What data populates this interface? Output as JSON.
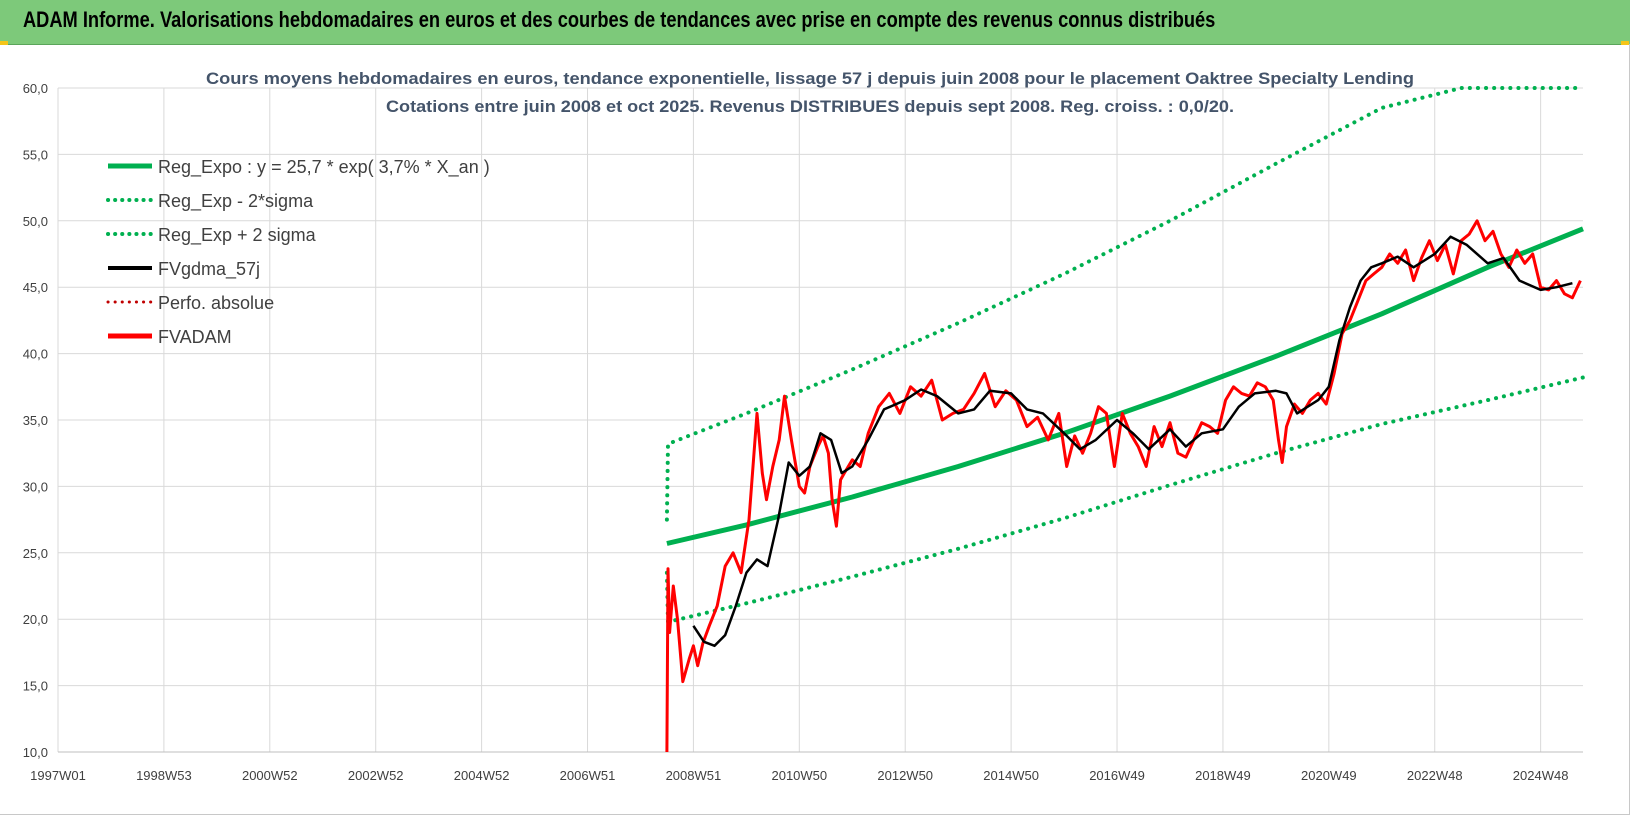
{
  "banner": {
    "title": "ADAM Informe. Valorisations hebdomadaires en euros et des courbes de tendances avec prise en compte des revenus connus distribués"
  },
  "colors": {
    "banner_bg": "#7dc97a",
    "reg_expo": "#00b050",
    "fvgdma": "#000000",
    "fvadam": "#ff0000",
    "perfo": "#c00000",
    "grid": "#d9d9d9"
  },
  "chart_data": {
    "type": "line",
    "title_lines": [
      "Cours moyens hebdomadaires en euros, tendance exponentielle, lissage 57 j depuis juin 2008 pour le placement Oaktree Specialty Lending",
      "Cotations entre juin 2008 et oct 2025. Revenus DISTRIBUES depuis sept 2008. Reg. croiss. : 0,0/20."
    ],
    "ylim": [
      10,
      60
    ],
    "y_ticks": [
      "10,0",
      "15,0",
      "20,0",
      "25,0",
      "30,0",
      "35,0",
      "40,0",
      "45,0",
      "50,0",
      "55,0",
      "60,0"
    ],
    "x_range_years": [
      1997.0,
      2025.8
    ],
    "x_ticks": [
      {
        "label": "1997W01",
        "year": 1997.0
      },
      {
        "label": "1998W53",
        "year": 1999.0
      },
      {
        "label": "2000W52",
        "year": 2001.0
      },
      {
        "label": "2002W52",
        "year": 2003.0
      },
      {
        "label": "2004W52",
        "year": 2005.0
      },
      {
        "label": "2006W51",
        "year": 2007.0
      },
      {
        "label": "2008W51",
        "year": 2009.0
      },
      {
        "label": "2010W50",
        "year": 2011.0
      },
      {
        "label": "2012W50",
        "year": 2013.0
      },
      {
        "label": "2014W50",
        "year": 2015.0
      },
      {
        "label": "2016W49",
        "year": 2017.0
      },
      {
        "label": "2018W49",
        "year": 2019.0
      },
      {
        "label": "2020W49",
        "year": 2021.0
      },
      {
        "label": "2022W48",
        "year": 2023.0
      },
      {
        "label": "2024W48",
        "year": 2025.0
      }
    ],
    "grid": true,
    "legend_position": "top-left",
    "legend": [
      {
        "label": "Reg_Expo : y = 25,7 * exp( 3,7% *  X_an )",
        "color": "#00b050",
        "style": "solid",
        "width": 5
      },
      {
        "label": "Reg_Exp - 2*sigma",
        "color": "#00b050",
        "style": "dotted",
        "width": 4
      },
      {
        "label": "Reg_Exp + 2 sigma",
        "color": "#00b050",
        "style": "dotted",
        "width": 4
      },
      {
        "label": "FVgdma_57j",
        "color": "#000000",
        "style": "solid",
        "width": 4
      },
      {
        "label": "Perfo. absolue",
        "color": "#c00000",
        "style": "dotted",
        "width": 3
      },
      {
        "label": "FVADAM",
        "color": "#ff0000",
        "style": "solid",
        "width": 5
      }
    ],
    "series": [
      {
        "name": "Reg_Expo : y = 25,7 * exp( 3,7% *  X_an )",
        "color": "#00b050",
        "style": "solid",
        "x": [
          2008.5,
          2010.0,
          2012.0,
          2014.0,
          2016.0,
          2018.0,
          2020.0,
          2022.0,
          2024.0,
          2025.8
        ],
        "y": [
          25.7,
          27.1,
          29.2,
          31.5,
          34.0,
          36.8,
          39.8,
          43.0,
          46.5,
          49.4
        ]
      },
      {
        "name": "Reg_Exp - 2*sigma",
        "color": "#00b050",
        "style": "dotted",
        "x": [
          2008.5,
          2008.52,
          2010.0,
          2012.0,
          2014.0,
          2016.0,
          2018.0,
          2020.0,
          2022.0,
          2024.0,
          2025.8
        ],
        "y": [
          23.5,
          19.8,
          21.2,
          23.2,
          25.3,
          27.6,
          30.1,
          32.5,
          34.7,
          36.5,
          38.2
        ]
      },
      {
        "name": "Reg_Exp + 2 sigma",
        "color": "#00b050",
        "style": "dotted",
        "x": [
          2008.5,
          2008.52,
          2010.0,
          2012.0,
          2014.0,
          2016.0,
          2018.0,
          2020.0,
          2022.0,
          2023.5,
          2024.0,
          2025.8
        ],
        "y": [
          27.5,
          33.2,
          35.5,
          38.8,
          42.3,
          46.0,
          50.0,
          54.3,
          58.5,
          60.0,
          60.0,
          60.0
        ]
      },
      {
        "name": "FVgdma_57j",
        "color": "#000000",
        "style": "solid",
        "x": [
          2009.0,
          2009.2,
          2009.4,
          2009.6,
          2009.8,
          2010.0,
          2010.2,
          2010.4,
          2010.6,
          2010.8,
          2011.0,
          2011.2,
          2011.4,
          2011.6,
          2011.8,
          2012.0,
          2012.3,
          2012.6,
          2013.0,
          2013.3,
          2013.6,
          2014.0,
          2014.3,
          2014.6,
          2015.0,
          2015.3,
          2015.6,
          2016.0,
          2016.3,
          2016.6,
          2017.0,
          2017.3,
          2017.6,
          2018.0,
          2018.3,
          2018.6,
          2019.0,
          2019.3,
          2019.6,
          2020.0,
          2020.2,
          2020.4,
          2020.6,
          2020.8,
          2021.0,
          2021.2,
          2021.4,
          2021.6,
          2021.8,
          2022.0,
          2022.3,
          2022.6,
          2023.0,
          2023.3,
          2023.6,
          2024.0,
          2024.3,
          2024.6,
          2025.0,
          2025.3,
          2025.6
        ],
        "y": [
          19.5,
          18.3,
          18.0,
          18.8,
          21.0,
          23.5,
          24.5,
          24.0,
          27.5,
          31.8,
          30.8,
          31.5,
          34.0,
          33.5,
          31.0,
          31.5,
          33.5,
          35.8,
          36.5,
          37.3,
          36.8,
          35.5,
          35.8,
          37.2,
          37.0,
          35.8,
          35.5,
          34.0,
          32.8,
          33.5,
          35.0,
          34.0,
          32.8,
          34.3,
          33.0,
          34.0,
          34.3,
          36.0,
          37.0,
          37.2,
          37.0,
          35.5,
          36.0,
          36.5,
          37.5,
          41.0,
          43.5,
          45.5,
          46.5,
          46.8,
          47.3,
          46.5,
          47.5,
          48.8,
          48.2,
          46.8,
          47.2,
          45.5,
          44.8,
          45.0,
          45.3
        ]
      },
      {
        "name": "FVADAM",
        "color": "#ff0000",
        "style": "solid",
        "x": [
          2008.5,
          2008.52,
          2008.55,
          2008.62,
          2008.7,
          2008.8,
          2008.92,
          2009.0,
          2009.08,
          2009.18,
          2009.3,
          2009.45,
          2009.6,
          2009.75,
          2009.9,
          2010.05,
          2010.2,
          2010.3,
          2010.38,
          2010.5,
          2010.62,
          2010.72,
          2010.85,
          2011.0,
          2011.1,
          2011.2,
          2011.35,
          2011.45,
          2011.55,
          2011.62,
          2011.7,
          2011.78,
          2011.85,
          2012.0,
          2012.15,
          2012.3,
          2012.5,
          2012.7,
          2012.9,
          2013.1,
          2013.3,
          2013.5,
          2013.7,
          2013.9,
          2014.1,
          2014.3,
          2014.5,
          2014.7,
          2014.9,
          2015.1,
          2015.3,
          2015.5,
          2015.7,
          2015.9,
          2016.05,
          2016.2,
          2016.35,
          2016.5,
          2016.65,
          2016.8,
          2016.95,
          2017.1,
          2017.25,
          2017.4,
          2017.55,
          2017.7,
          2017.85,
          2018.0,
          2018.15,
          2018.3,
          2018.45,
          2018.6,
          2018.75,
          2018.9,
          2019.05,
          2019.2,
          2019.35,
          2019.5,
          2019.65,
          2019.8,
          2019.95,
          2020.05,
          2020.12,
          2020.2,
          2020.35,
          2020.5,
          2020.65,
          2020.8,
          2020.95,
          2021.1,
          2021.25,
          2021.4,
          2021.55,
          2021.7,
          2021.85,
          2022.0,
          2022.15,
          2022.3,
          2022.45,
          2022.6,
          2022.75,
          2022.9,
          2023.05,
          2023.2,
          2023.35,
          2023.5,
          2023.65,
          2023.8,
          2023.95,
          2024.1,
          2024.25,
          2024.4,
          2024.55,
          2024.7,
          2024.85,
          2025.0,
          2025.15,
          2025.3,
          2025.45,
          2025.6,
          2025.75
        ],
        "y": [
          10.0,
          23.8,
          19.0,
          22.5,
          20.0,
          15.3,
          17.0,
          18.0,
          16.5,
          18.2,
          19.5,
          21.0,
          24.0,
          25.0,
          23.5,
          27.5,
          35.5,
          31.0,
          29.0,
          31.5,
          33.5,
          36.8,
          33.5,
          30.0,
          29.5,
          31.5,
          33.0,
          33.8,
          32.5,
          29.0,
          27.0,
          30.5,
          31.0,
          32.0,
          31.5,
          34.0,
          36.0,
          37.0,
          35.5,
          37.5,
          36.8,
          38.0,
          35.0,
          35.5,
          35.8,
          37.0,
          38.5,
          36.0,
          37.2,
          36.5,
          34.5,
          35.2,
          33.5,
          35.5,
          31.5,
          33.8,
          32.5,
          34.0,
          36.0,
          35.5,
          31.5,
          35.5,
          34.0,
          33.0,
          31.5,
          34.5,
          33.0,
          34.8,
          32.5,
          32.2,
          33.5,
          34.8,
          34.5,
          34.0,
          36.5,
          37.5,
          37.0,
          36.8,
          37.8,
          37.5,
          36.5,
          33.5,
          31.8,
          34.5,
          36.2,
          35.5,
          36.5,
          37.0,
          36.2,
          38.5,
          41.5,
          42.5,
          44.0,
          45.5,
          46.0,
          46.5,
          47.5,
          46.8,
          47.8,
          45.5,
          47.2,
          48.5,
          47.0,
          48.2,
          46.0,
          48.5,
          49.0,
          50.0,
          48.5,
          49.2,
          47.5,
          46.5,
          47.8,
          46.8,
          47.5,
          45.0,
          44.8,
          45.5,
          44.5,
          44.2,
          45.5
        ]
      },
      {
        "name": "Perfo. absolue",
        "color": "#c00000",
        "style": "dotted",
        "x": [],
        "y": []
      }
    ]
  }
}
